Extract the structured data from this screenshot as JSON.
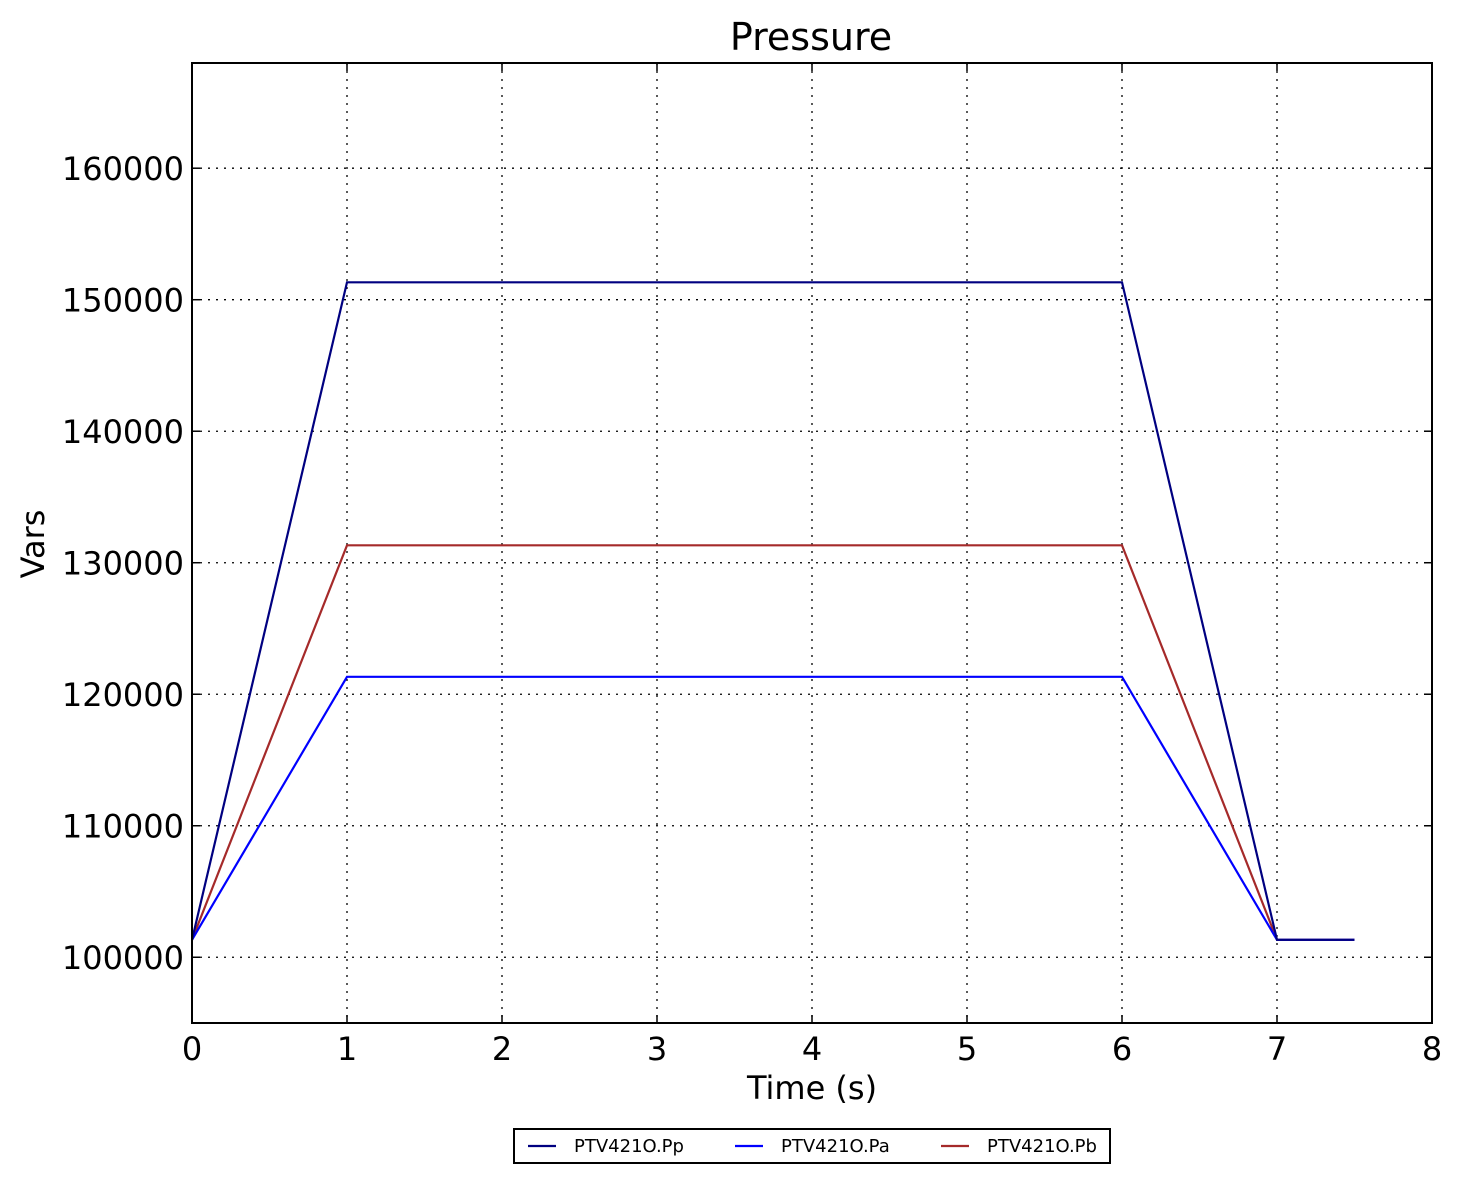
{
  "chart_data": {
    "type": "line",
    "title": "Pressure",
    "xlabel": "Time (s)",
    "ylabel": "Vars",
    "xlim": [
      0,
      8
    ],
    "ylim": [
      95000,
      168000
    ],
    "xticks": [
      0,
      1,
      2,
      3,
      4,
      5,
      6,
      7,
      8
    ],
    "yticks": [
      100000,
      110000,
      120000,
      130000,
      140000,
      150000,
      160000
    ],
    "grid": true,
    "legend_position": "bottom-center",
    "series": [
      {
        "name": "PTV421O.Pp",
        "color": "#000080",
        "x": [
          0,
          1,
          6,
          7,
          7.5
        ],
        "y": [
          101325,
          151325,
          151325,
          101325,
          101325
        ]
      },
      {
        "name": "PTV421O.Pa",
        "color": "#0000ff",
        "x": [
          0,
          1,
          6,
          7,
          7.5
        ],
        "y": [
          101325,
          121325,
          121325,
          101325,
          101325
        ]
      },
      {
        "name": "PTV421O.Pb",
        "color": "#a52a2a",
        "x": [
          0,
          1,
          6,
          7,
          7.5
        ],
        "y": [
          101325,
          131325,
          131325,
          101325,
          101325
        ]
      }
    ]
  }
}
